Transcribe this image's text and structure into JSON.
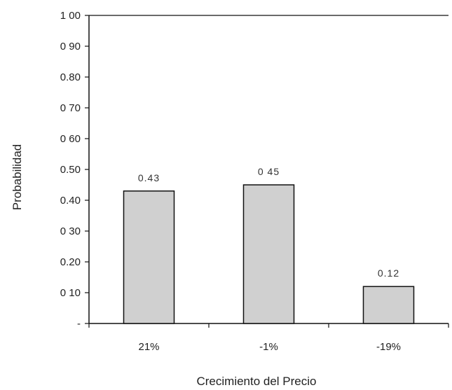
{
  "chart_data": {
    "type": "bar",
    "categories": [
      "21%",
      "-1%",
      "-19%"
    ],
    "values": [
      0.43,
      0.45,
      0.12
    ],
    "data_labels": [
      "0.43",
      "0 45",
      "0.12"
    ],
    "xlabel": "Crecimiento del Precio",
    "ylabel": "Probabilidad",
    "ylim": [
      0,
      1.0
    ],
    "yticks": [
      0,
      0.1,
      0.2,
      0.3,
      0.4,
      0.5,
      0.6,
      0.7,
      0.8,
      0.9,
      1.0
    ],
    "ytick_labels": [
      "-",
      "0 10",
      "0.20",
      "0 30",
      "0.40",
      "0.50",
      "0 60",
      "0 70",
      "0.80",
      "0 90",
      "1 00"
    ],
    "grid": false,
    "legend": "none",
    "colors": {
      "bar_fill": "#d0d0d0",
      "bar_stroke": "#111111",
      "axis": "#111111"
    }
  }
}
